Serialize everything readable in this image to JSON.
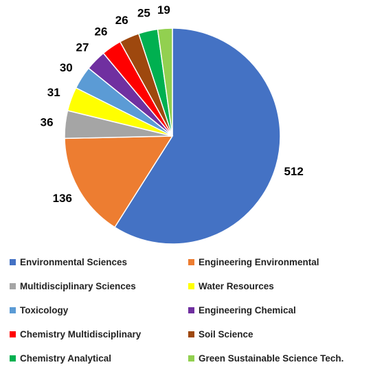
{
  "chart_data": {
    "type": "pie",
    "title": "",
    "legend_position": "bottom",
    "slices": [
      {
        "label": "Environmental Sciences",
        "value": 512,
        "color": "#4472C4"
      },
      {
        "label": "Engineering Environmental",
        "value": 136,
        "color": "#ED7D31"
      },
      {
        "label": "Multidisciplinary Sciences",
        "value": 36,
        "color": "#A5A5A5"
      },
      {
        "label": "Water Resources",
        "value": 31,
        "color": "#FFFF00"
      },
      {
        "label": "Toxicology",
        "value": 30,
        "color": "#5B9BD5"
      },
      {
        "label": "Engineering Chemical",
        "value": 27,
        "color": "#7030A0"
      },
      {
        "label": "Chemistry Multidisciplinary",
        "value": 26,
        "color": "#FF0000"
      },
      {
        "label": "Soil Science",
        "value": 26,
        "color": "#9E480E"
      },
      {
        "label": "Chemistry Analytical",
        "value": 25,
        "color": "#00B050"
      },
      {
        "label": "Green Sustainable Science Tech.",
        "value": 19,
        "color": "#92D050"
      }
    ]
  }
}
